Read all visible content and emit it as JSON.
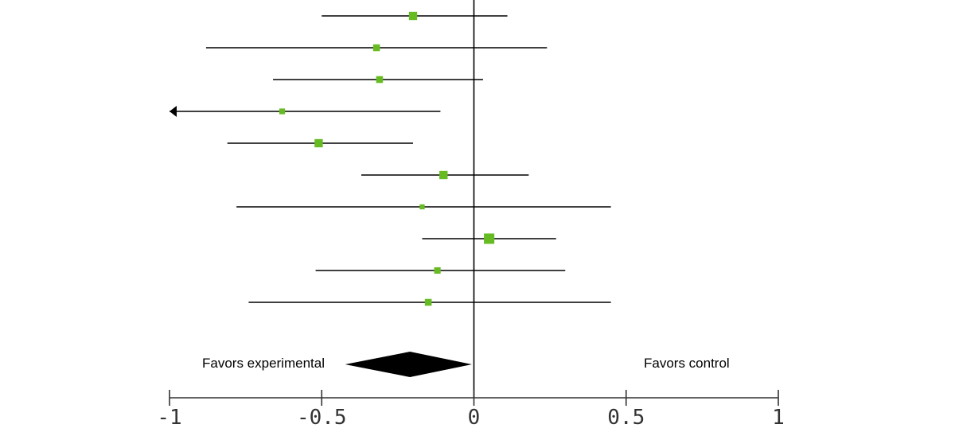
{
  "chart_data": {
    "type": "forest",
    "title": "",
    "xlabel": "",
    "ylabel": "",
    "xlim": [
      -1,
      1
    ],
    "x_ticks": [
      -1,
      -0.5,
      0,
      0.5,
      1
    ],
    "x_tick_labels": [
      "-1",
      "-0.5",
      "0",
      "0.5",
      "1"
    ],
    "reference_line": 0,
    "studies": [
      {
        "estimate": -0.2,
        "lower": -0.5,
        "upper": 0.11,
        "weight": 1.15
      },
      {
        "estimate": -0.32,
        "lower": -0.88,
        "upper": 0.24,
        "weight": 0.95
      },
      {
        "estimate": -0.31,
        "lower": -0.66,
        "upper": 0.03,
        "weight": 0.95
      },
      {
        "estimate": -0.63,
        "lower": -1.0,
        "upper": -0.11,
        "weight": 0.8,
        "truncated_left": true
      },
      {
        "estimate": -0.51,
        "lower": -0.81,
        "upper": -0.2,
        "weight": 1.15
      },
      {
        "estimate": -0.1,
        "lower": -0.37,
        "upper": 0.18,
        "weight": 1.15
      },
      {
        "estimate": -0.17,
        "lower": -0.78,
        "upper": 0.45,
        "weight": 0.7
      },
      {
        "estimate": 0.05,
        "lower": -0.17,
        "upper": 0.27,
        "weight": 1.45
      },
      {
        "estimate": -0.12,
        "lower": -0.52,
        "upper": 0.3,
        "weight": 0.9
      },
      {
        "estimate": -0.15,
        "lower": -0.74,
        "upper": 0.45,
        "weight": 0.95
      }
    ],
    "pooled": {
      "estimate": -0.21,
      "lower": -0.35,
      "upper": -0.08
    },
    "favors_left_label": "Favors experimental",
    "favors_right_label": "Favors control",
    "colors": {
      "marker": "#66bb22",
      "line": "#000000",
      "axis": "#333333",
      "pooled": "#000000"
    }
  }
}
